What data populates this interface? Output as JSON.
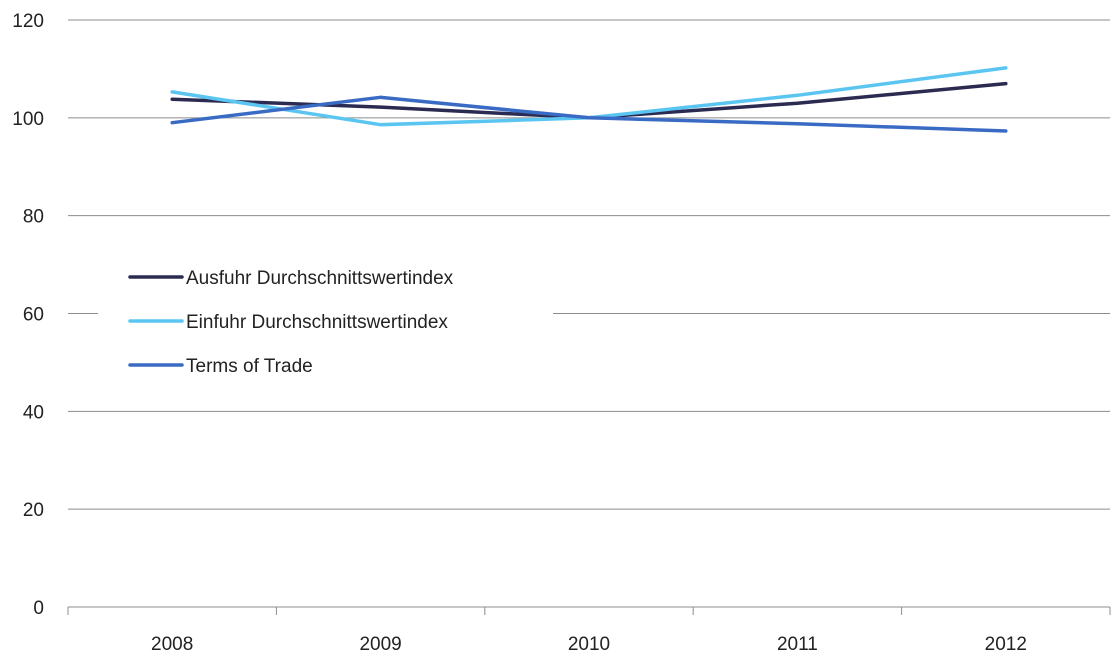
{
  "chart_data": {
    "type": "line",
    "title": "",
    "xlabel": "",
    "ylabel": "",
    "categories": [
      "2008",
      "2009",
      "2010",
      "2011",
      "2012"
    ],
    "ylim": [
      0,
      120
    ],
    "yticks": [
      0,
      20,
      40,
      60,
      80,
      100,
      120
    ],
    "grid": true,
    "legend_position": "middle-left",
    "series": [
      {
        "name": "Ausfuhr Durchschnittswertindex",
        "color": "#2b2b52",
        "values": [
          103.8,
          102.2,
          100.0,
          103.0,
          107.0
        ]
      },
      {
        "name": "Einfuhr Durchschnittswertindex",
        "color": "#5bc5f2",
        "values": [
          105.3,
          98.6,
          100.0,
          104.6,
          110.2
        ]
      },
      {
        "name": "Terms of Trade",
        "color": "#3a6bc4",
        "values": [
          99.0,
          104.2,
          100.0,
          98.8,
          97.3
        ]
      }
    ]
  }
}
